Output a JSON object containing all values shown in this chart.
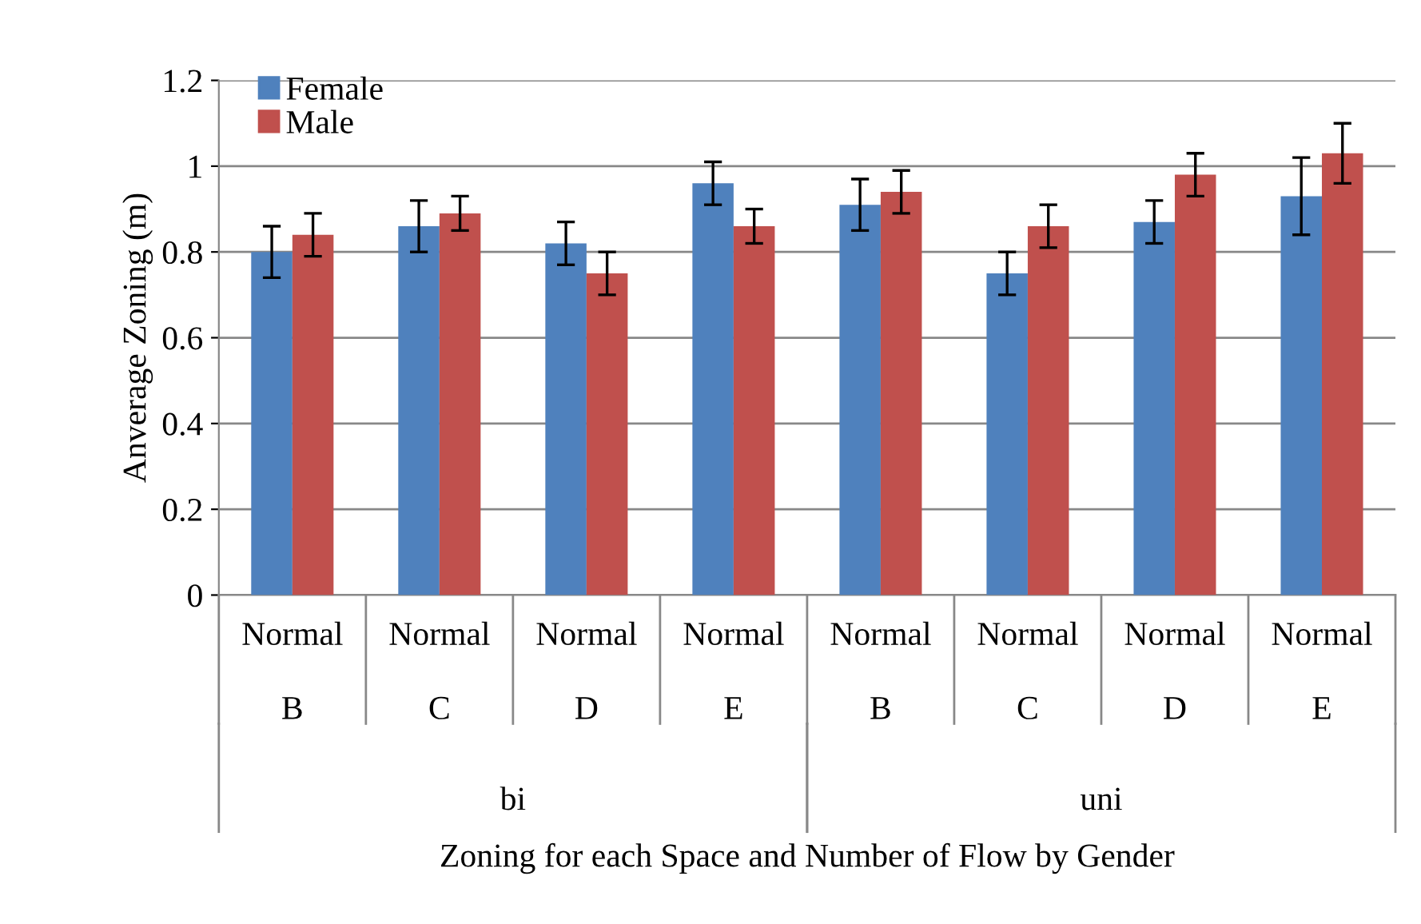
{
  "chart_data": {
    "type": "bar",
    "categories": [
      "Normal\nB",
      "Normal\nC",
      "Normal\nD",
      "Normal\nE",
      "Normal\nB",
      "Normal\nC",
      "Normal\nD",
      "Normal\nE"
    ],
    "series": [
      {
        "name": "Female",
        "color": "#4f81bd",
        "values": [
          0.8,
          0.86,
          0.82,
          0.96,
          0.91,
          0.75,
          0.87,
          0.93
        ],
        "errors": [
          0.06,
          0.06,
          0.05,
          0.05,
          0.06,
          0.05,
          0.05,
          0.09
        ]
      },
      {
        "name": "Male",
        "color": "#c0504d",
        "values": [
          0.84,
          0.89,
          0.75,
          0.86,
          0.94,
          0.86,
          0.98,
          1.03
        ],
        "errors": [
          0.05,
          0.04,
          0.05,
          0.04,
          0.05,
          0.05,
          0.05,
          0.07
        ]
      }
    ],
    "annotations": [
      "bi",
      "uni",
      "Zoning for each Space and Number of Flow by Gender"
    ],
    "ylabel": "Anverage Zoning (m)",
    "ylim": [
      0,
      1.2
    ],
    "yticks": [
      0,
      0.2,
      0.4,
      0.6,
      0.8,
      1,
      1.2
    ],
    "grid": "y",
    "legend": "top left"
  }
}
